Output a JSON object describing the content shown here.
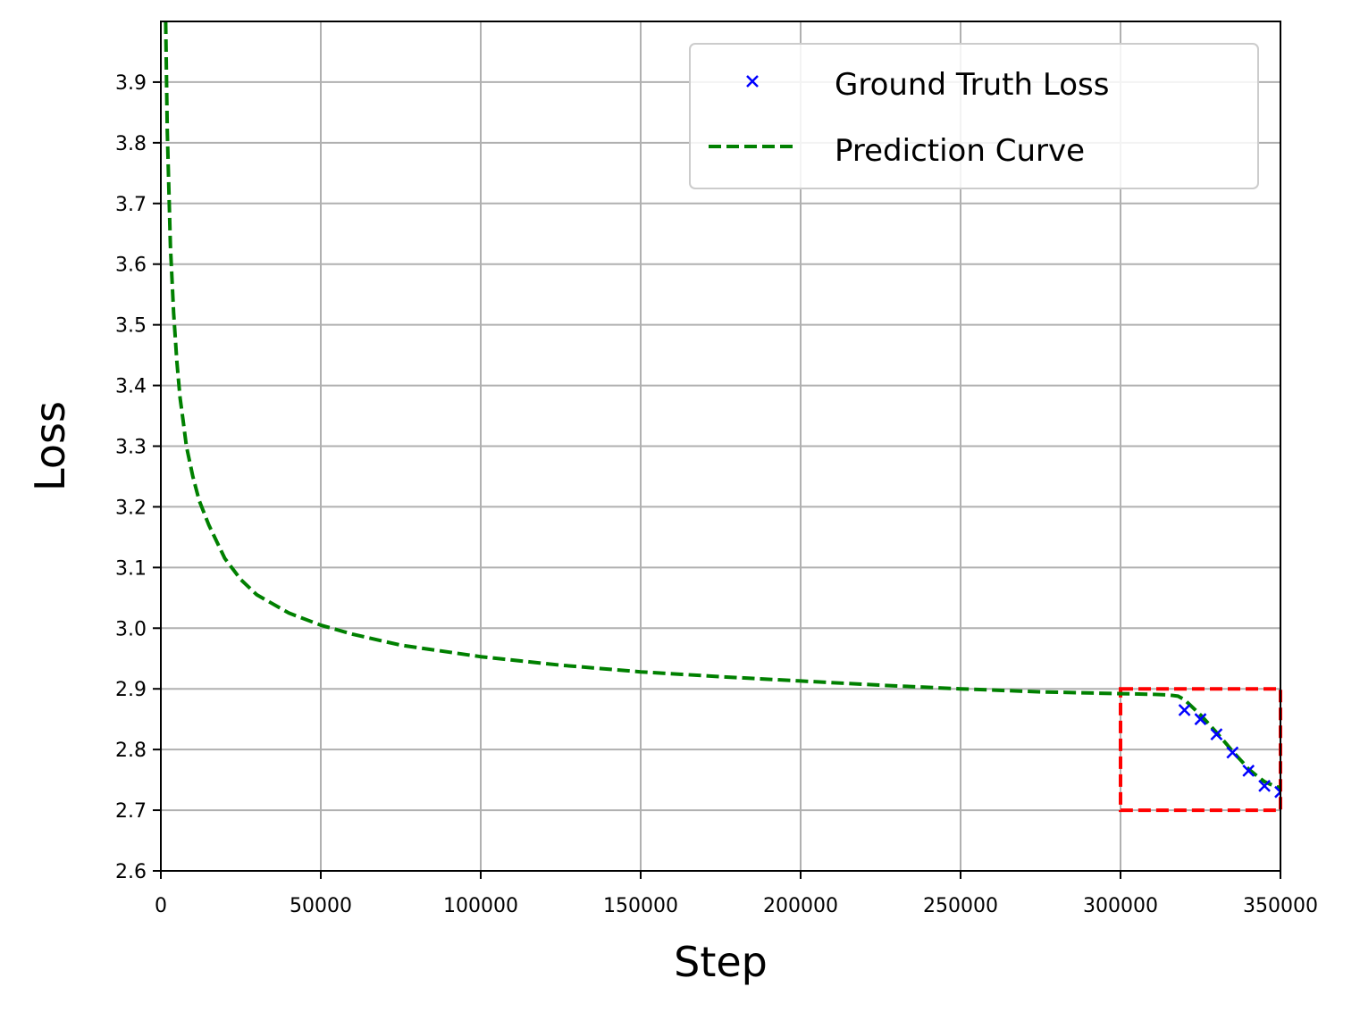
{
  "chart_data": {
    "type": "line",
    "title": "",
    "xlabel": "Step",
    "ylabel": "Loss",
    "xlim": [
      0,
      350000
    ],
    "ylim": [
      2.6,
      4.0
    ],
    "xticks": [
      0,
      50000,
      100000,
      150000,
      200000,
      250000,
      300000,
      350000
    ],
    "xtick_labels": [
      "0",
      "50000",
      "100000",
      "150000",
      "200000",
      "250000",
      "300000",
      "350000"
    ],
    "yticks": [
      2.6,
      2.7,
      2.8,
      2.9,
      3.0,
      3.1,
      3.2,
      3.3,
      3.4,
      3.5,
      3.6,
      3.7,
      3.8,
      3.9
    ],
    "ytick_labels": [
      "2.6",
      "2.7",
      "2.8",
      "2.9",
      "3.0",
      "3.1",
      "3.2",
      "3.3",
      "3.4",
      "3.5",
      "3.6",
      "3.7",
      "3.8",
      "3.9"
    ],
    "grid": true,
    "legend_position": "top-right",
    "series": [
      {
        "name": "Ground Truth Loss",
        "kind": "scatter",
        "marker": "x",
        "color": "#0000ff",
        "x": [
          320000,
          325000,
          330000,
          335000,
          340000,
          345000,
          350000
        ],
        "y": [
          2.865,
          2.85,
          2.825,
          2.795,
          2.765,
          2.74,
          2.73
        ]
      },
      {
        "name": "Prediction Curve",
        "kind": "line",
        "style": "dashed",
        "color": "#008000",
        "x": [
          1500,
          2000,
          3000,
          4000,
          5000,
          6000,
          7000,
          8000,
          10000,
          12000,
          15000,
          20000,
          25000,
          30000,
          40000,
          50000,
          60000,
          75000,
          100000,
          125000,
          150000,
          175000,
          200000,
          225000,
          250000,
          275000,
          300000,
          310000,
          315000,
          318000,
          320000,
          322000,
          325000,
          328000,
          330000,
          333000,
          335000,
          338000,
          340000,
          343000,
          345000,
          348000,
          350000
        ],
        "y": [
          4.0,
          3.82,
          3.63,
          3.52,
          3.44,
          3.38,
          3.34,
          3.3,
          3.25,
          3.21,
          3.17,
          3.115,
          3.08,
          3.055,
          3.025,
          3.005,
          2.99,
          2.972,
          2.953,
          2.939,
          2.928,
          2.92,
          2.913,
          2.906,
          2.9,
          2.895,
          2.892,
          2.891,
          2.89,
          2.888,
          2.882,
          2.872,
          2.857,
          2.84,
          2.828,
          2.81,
          2.797,
          2.78,
          2.768,
          2.755,
          2.747,
          2.74,
          2.737
        ]
      }
    ],
    "annotations": [
      {
        "kind": "rectangle",
        "style": "dashed",
        "color": "#ff0000",
        "x_range": [
          300000,
          350000
        ],
        "y_range": [
          2.7,
          2.9
        ]
      }
    ]
  }
}
